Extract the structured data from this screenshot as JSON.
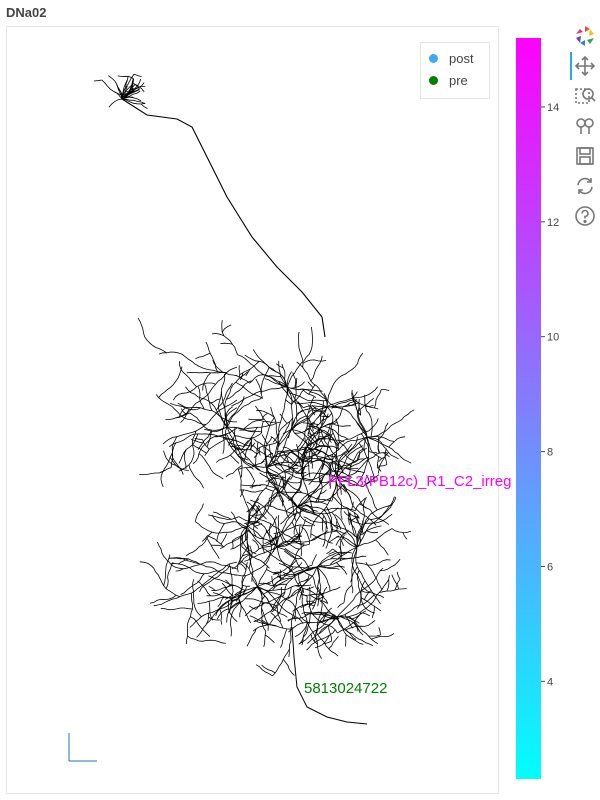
{
  "title": "DNa02",
  "legend": [
    {
      "label": "post",
      "color": "#3fa9f5"
    },
    {
      "label": "pre",
      "color": "#007f00"
    }
  ],
  "annotations": [
    {
      "text": "PFL3(PB12c)_R1_C2_irreg",
      "color": "#ff00ff"
    },
    {
      "text": "5813024722",
      "color": "#007f00"
    }
  ],
  "toolbar": {
    "items": [
      {
        "name": "bokeh-logo-icon"
      },
      {
        "name": "pan-tool-icon"
      },
      {
        "name": "box-zoom-tool-icon"
      },
      {
        "name": "wheel-zoom-tool-icon"
      },
      {
        "name": "save-tool-icon"
      },
      {
        "name": "reset-tool-icon"
      },
      {
        "name": "help-tool-icon"
      }
    ]
  },
  "chart_data": {
    "type": "scatter",
    "title": "DNa02",
    "description_series": [
      {
        "name": "post",
        "color": "#3fa9f5"
      },
      {
        "name": "pre",
        "color": "#007f00"
      }
    ],
    "colorbar": {
      "ticks": [
        4,
        6,
        8,
        10,
        12,
        14
      ],
      "range": [
        2.3,
        15.2
      ],
      "colors": [
        "#00ffff",
        "#ff00ff"
      ]
    },
    "neuron_color": "#000000"
  }
}
